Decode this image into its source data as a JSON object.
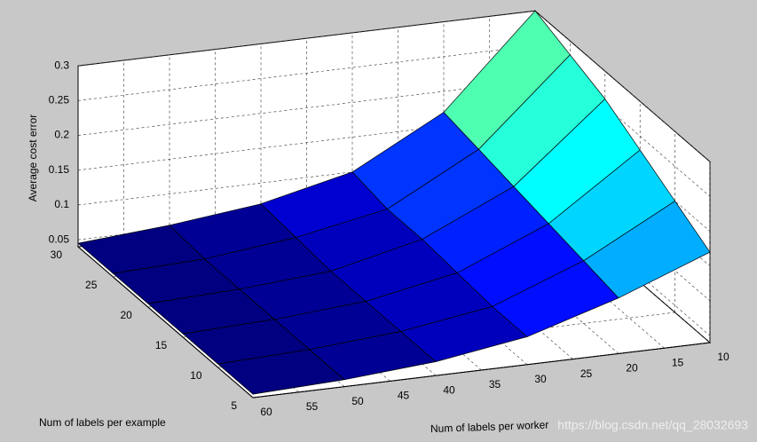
{
  "chart_data": {
    "type": "surface",
    "x_label": "Num of labels per worker",
    "y_label": "Num of labels per example",
    "z_label": "Average cost error",
    "x": [
      60,
      50,
      40,
      30,
      20,
      10
    ],
    "y": [
      5,
      10,
      15,
      20,
      25,
      30
    ],
    "z": [
      [
        0.045,
        0.05,
        0.06,
        0.08,
        0.12,
        0.17
      ],
      [
        0.045,
        0.05,
        0.06,
        0.08,
        0.13,
        0.2
      ],
      [
        0.045,
        0.05,
        0.06,
        0.085,
        0.14,
        0.23
      ],
      [
        0.045,
        0.05,
        0.06,
        0.09,
        0.15,
        0.26
      ],
      [
        0.045,
        0.05,
        0.065,
        0.09,
        0.16,
        0.28
      ],
      [
        0.045,
        0.055,
        0.07,
        0.1,
        0.17,
        0.3
      ]
    ],
    "xlim": [
      60,
      10
    ],
    "ylim": [
      5,
      30
    ],
    "zlim": [
      0.04,
      0.3
    ],
    "xticks": [
      60,
      55,
      50,
      45,
      40,
      35,
      30,
      25,
      20,
      15,
      10
    ],
    "yticks": [
      5,
      10,
      15,
      20,
      25,
      30
    ],
    "zticks": [
      0.05,
      0.1,
      0.15,
      0.2,
      0.25,
      0.3
    ],
    "grid": true,
    "colormap": "jet"
  },
  "watermark": "https://blog.csdn.net/qq_28032693"
}
